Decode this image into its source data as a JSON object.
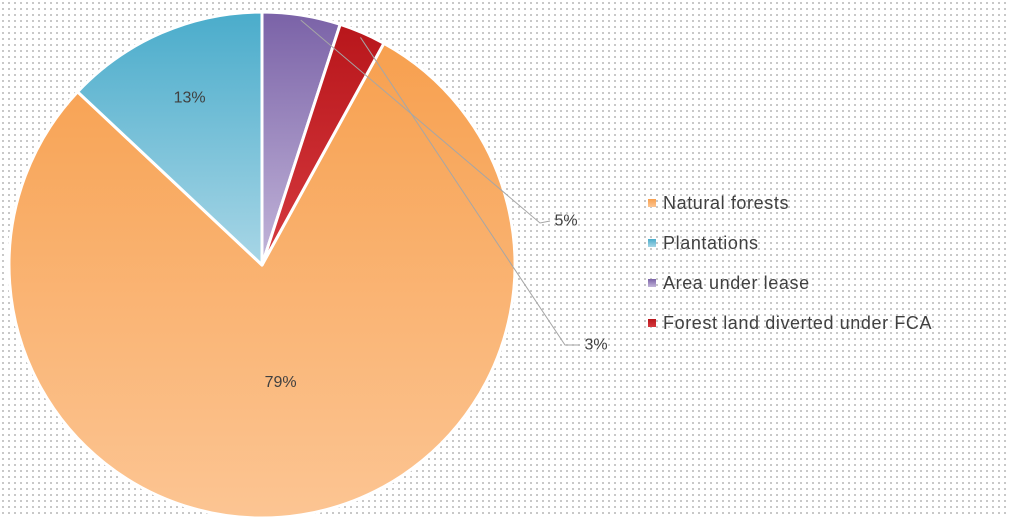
{
  "chart_data": {
    "type": "pie",
    "title": "",
    "legend_position": "right",
    "slices": [
      {
        "name": "Natural forests",
        "value": 79,
        "label": "79%",
        "color_start": "#f7a04f",
        "color_end": "#fcc593"
      },
      {
        "name": "Plantations",
        "value": 13,
        "label": "13%",
        "color_start": "#4aaccb",
        "color_end": "#a8d6e6"
      },
      {
        "name": "Area under lease",
        "value": 5,
        "label": "5%",
        "color_start": "#7a62a7",
        "color_end": "#c3b6da"
      },
      {
        "name": "Forest land diverted under FCA",
        "value": 3,
        "label": "3%",
        "color_start": "#b8161b",
        "color_end": "#d63a3f"
      }
    ]
  }
}
